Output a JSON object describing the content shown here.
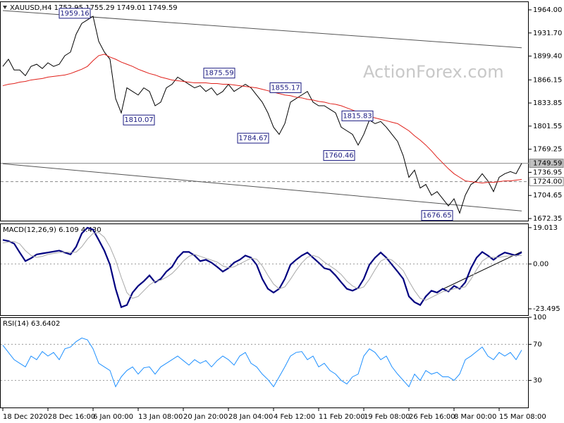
{
  "chart_data": [
    {
      "type": "line",
      "title": "XAUUSD,H4  1752.95 1755.29 1749.01 1749.59",
      "watermark": "ActionForex.com",
      "categories": [
        "18 Dec 2020",
        null,
        null,
        null,
        null,
        null,
        null,
        null,
        "28 Dec 16:00",
        null,
        null,
        null,
        null,
        null,
        null,
        null,
        "6 Jan 00:00",
        null,
        null,
        null,
        null,
        null,
        null,
        null,
        "13 Jan 08:00",
        null,
        null,
        null,
        null,
        null,
        null,
        null,
        "20 Jan 20:00",
        null,
        null,
        null,
        null,
        null,
        null,
        null,
        "28 Jan 04:00",
        null,
        null,
        null,
        null,
        null,
        null,
        null,
        "4 Feb 12:00",
        null,
        null,
        null,
        null,
        null,
        null,
        null,
        "11 Feb 20:00",
        null,
        null,
        null,
        null,
        null,
        null,
        null,
        "19 Feb 08:00",
        null,
        null,
        null,
        null,
        null,
        null,
        null,
        "26 Feb 16:00",
        null,
        null,
        null,
        null,
        null,
        null,
        null,
        "8 Mar 00:00",
        null,
        null,
        null,
        null,
        null,
        null,
        null,
        "15 Mar 08:00",
        null,
        null,
        null,
        null
      ],
      "series": [
        {
          "color": "#000000",
          "values": [
            1885,
            1895,
            1880,
            1880,
            1872,
            1885,
            1888,
            1882,
            1890,
            1885,
            1888,
            1900,
            1905,
            1930,
            1945,
            1950,
            1955,
            1920,
            1905,
            1895,
            1840,
            1820,
            1855,
            1850,
            1845,
            1855,
            1850,
            1830,
            1835,
            1855,
            1860,
            1870,
            1865,
            1860,
            1855,
            1858,
            1850,
            1855,
            1845,
            1850,
            1860,
            1850,
            1855,
            1860,
            1855,
            1845,
            1835,
            1820,
            1800,
            1790,
            1805,
            1835,
            1840,
            1845,
            1850,
            1835,
            1830,
            1830,
            1825,
            1820,
            1800,
            1795,
            1790,
            1775,
            1790,
            1810,
            1805,
            1808,
            1800,
            1790,
            1780,
            1760,
            1730,
            1740,
            1715,
            1720,
            1705,
            1710,
            1700,
            1690,
            1700,
            1680,
            1705,
            1720,
            1725,
            1735,
            1725,
            1710,
            1730,
            1735,
            1738,
            1735,
            1749.59
          ]
        },
        {
          "color": "#e0201a",
          "values": [
            1858,
            1860,
            1861,
            1863,
            1864,
            1866,
            1867,
            1868,
            1870,
            1871,
            1872,
            1873,
            1875,
            1878,
            1881,
            1885,
            1893,
            1900,
            1902,
            1898,
            1895,
            1891,
            1888,
            1885,
            1881,
            1878,
            1875,
            1873,
            1870,
            1868,
            1866,
            1865,
            1864,
            1863,
            1862,
            1862,
            1862,
            1861,
            1861,
            1860,
            1860,
            1859,
            1858,
            1857,
            1856,
            1855,
            1853,
            1851,
            1849,
            1847,
            1845,
            1844,
            1842,
            1841,
            1839,
            1838,
            1836,
            1835,
            1833,
            1832,
            1830,
            1827,
            1824,
            1821,
            1818,
            1815,
            1813,
            1811,
            1809,
            1807,
            1805,
            1800,
            1795,
            1788,
            1782,
            1775,
            1767,
            1758,
            1750,
            1742,
            1735,
            1730,
            1725,
            1724,
            1723,
            1722,
            1723,
            1723,
            1724,
            1725,
            1725,
            1726,
            1727
          ]
        }
      ],
      "ylim": [
        1669.4,
        1975.8
      ],
      "yticks": [
        {
          "value": 1964,
          "label": "1964.00"
        },
        {
          "value": 1931.7,
          "label": "1931.70"
        },
        {
          "value": 1899.4,
          "label": "1899.40"
        },
        {
          "value": 1866.15,
          "label": "1866.15"
        },
        {
          "value": 1833.85,
          "label": "1833.85"
        },
        {
          "value": 1801.55,
          "label": "1801.55"
        },
        {
          "value": 1769.25,
          "label": "1769.25"
        },
        {
          "value": 1736.95,
          "label": "1736.95"
        },
        {
          "value": 1704.65,
          "label": "1704.65"
        },
        {
          "value": 1672.35,
          "label": "1672.35"
        }
      ],
      "levels": [
        {
          "value": 1749.59,
          "label": "1749.59",
          "style": "solid"
        },
        {
          "value": 1724,
          "label": "1724.00",
          "style": "dashed"
        }
      ],
      "trendlines": [
        {
          "x": [
            0,
            92
          ],
          "y": [
            1963,
            1911
          ],
          "color": "#555555"
        },
        {
          "x": [
            0,
            92
          ],
          "y": [
            1749,
            1683
          ],
          "color": "#555555"
        }
      ],
      "annotations": [
        1959.16,
        1875.59,
        1810.07,
        1855.17,
        1784.67,
        1815.83,
        1760.46,
        1676.65
      ]
    },
    {
      "type": "line",
      "title": "MACD(12,26,9) 6.109 4.430",
      "series": [
        {
          "color": "#000080",
          "values": [
            12.6,
            12,
            10.7,
            6,
            1.5,
            3,
            5,
            5.5,
            6,
            6.5,
            7,
            6,
            5,
            9,
            16,
            19,
            18,
            12.6,
            7,
            -0.4,
            -13,
            -22.6,
            -21.5,
            -15,
            -11.5,
            -9,
            -6,
            -9.6,
            -7.8,
            -4,
            -1.5,
            3.3,
            6.3,
            6.3,
            4.4,
            1.5,
            2.2,
            0.7,
            -1.5,
            -4,
            -2.2,
            0.7,
            2.2,
            4.4,
            3.3,
            -0.4,
            -7.8,
            -13,
            -15,
            -13,
            -7.8,
            -0.4,
            2.2,
            4.4,
            6,
            3.3,
            0.7,
            -2.2,
            -3,
            -6,
            -9.6,
            -13,
            -14,
            -12.6,
            -7.8,
            -0.4,
            3.3,
            6,
            3.3,
            -0.4,
            -4,
            -7.8,
            -17,
            -20,
            -21.5,
            -17,
            -14,
            -15,
            -13,
            -14.4,
            -11.5,
            -13,
            -9.6,
            -2.2,
            3.3,
            6.3,
            4.4,
            2.2,
            4.4,
            6,
            5.2,
            4.4,
            6.109
          ]
        },
        {
          "color": "#a8a8a8",
          "values": [
            11,
            11.5,
            11.8,
            10.5,
            7,
            4.5,
            3.5,
            4,
            5,
            5.5,
            6,
            6.3,
            6,
            6.2,
            9,
            13,
            16,
            16.5,
            14,
            9,
            2,
            -7,
            -15,
            -18,
            -17,
            -14,
            -11,
            -9,
            -8.5,
            -7,
            -5,
            -2,
            1.5,
            4,
            5,
            4,
            3,
            2,
            1,
            -1,
            -2,
            -1.5,
            0,
            1.5,
            3,
            2.5,
            -1,
            -6,
            -10.5,
            -13,
            -12,
            -8,
            -3.5,
            0.5,
            3.5,
            4.5,
            3.5,
            1,
            -1,
            -3,
            -5.5,
            -9,
            -11.5,
            -13,
            -12,
            -8,
            -3,
            1.5,
            3,
            2,
            -0.5,
            -3.5,
            -9,
            -14,
            -18,
            -19,
            -17.5,
            -16,
            -14.5,
            -14,
            -13,
            -12.5,
            -12,
            -8,
            -3,
            1.5,
            3.5,
            3.5,
            3.5,
            4,
            4.3,
            4.4,
            4.43
          ]
        }
      ],
      "ylim": [
        -26.8,
        21.2
      ],
      "yticks": [
        19.013,
        {
          "value": 0,
          "label": "0.00"
        },
        -23.495
      ],
      "levels": [
        {
          "value": 0,
          "style": "dotted"
        }
      ],
      "trendlines": [
        {
          "x": [
            77,
            92
          ],
          "y": [
            -14.6,
            6.5
          ],
          "color": "#000000"
        }
      ]
    },
    {
      "type": "line",
      "title": "RSI(14) 63.6402",
      "series": [
        {
          "color": "#1e90ff",
          "values": [
            69,
            61,
            53,
            49,
            45,
            57,
            53,
            62,
            57,
            61,
            53,
            65,
            67,
            73,
            77,
            75,
            65,
            49,
            45,
            41,
            23,
            34,
            41,
            45,
            37,
            44,
            45,
            37,
            45,
            49,
            53,
            57,
            52,
            47,
            53,
            49,
            52,
            45,
            52,
            57,
            53,
            47,
            57,
            61,
            49,
            45,
            37,
            31,
            23,
            34,
            45,
            57,
            61,
            62,
            53,
            57,
            45,
            49,
            41,
            37,
            30,
            26,
            34,
            37,
            57,
            65,
            61,
            53,
            57,
            45,
            37,
            30,
            23,
            37,
            30,
            41,
            37,
            39,
            34,
            34,
            30,
            37,
            53,
            57,
            62,
            67,
            57,
            53,
            61,
            57,
            61,
            53,
            63.64
          ]
        }
      ],
      "ylim": [
        0,
        100
      ],
      "yticks": [
        100,
        70,
        30
      ],
      "levels": [
        {
          "value": 70,
          "style": "dotted"
        },
        {
          "value": 30,
          "style": "dotted"
        }
      ]
    }
  ]
}
